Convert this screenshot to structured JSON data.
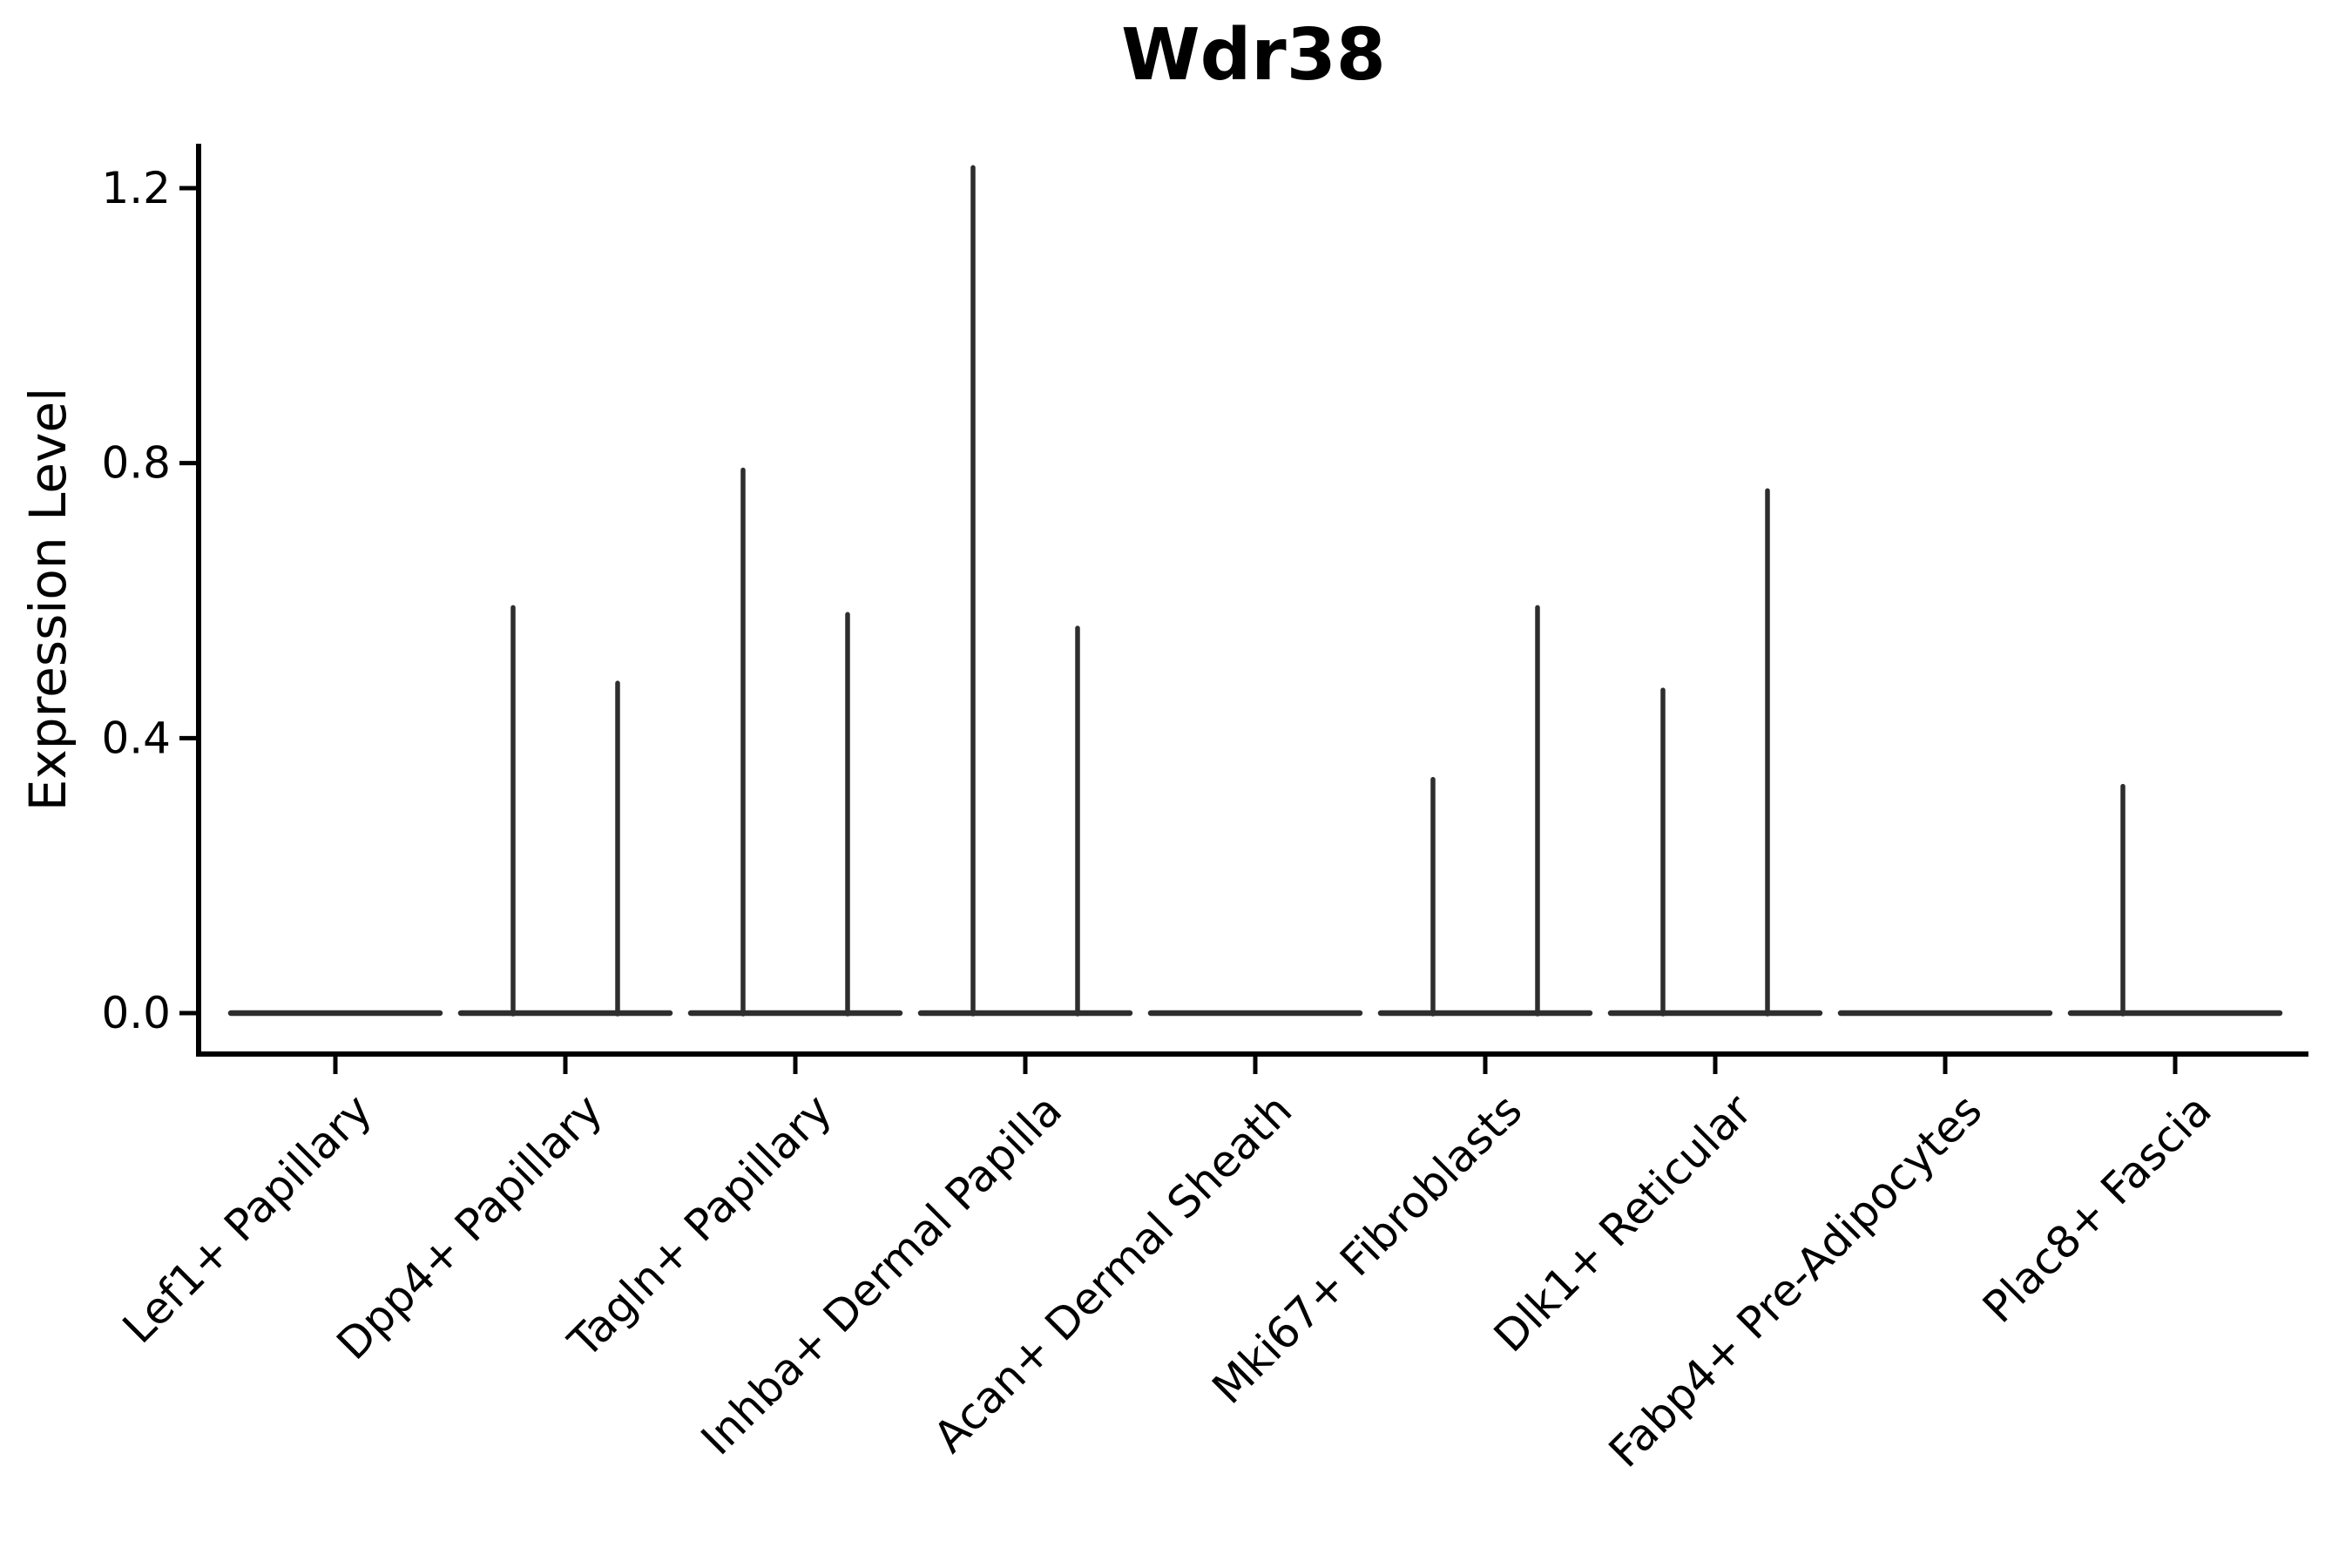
{
  "chart_data": {
    "type": "violin",
    "title": "Wdr38",
    "xlabel": "",
    "ylabel": "Expression Level",
    "background": "#ffffff",
    "violin_color": "#2e2e2e",
    "axis_color": "#000000",
    "grid": false,
    "legend": "none",
    "ylim": [
      -0.06,
      1.26
    ],
    "yticks": [
      0,
      0.4,
      0.8,
      1.2
    ],
    "ytick_labels": [
      "0.0",
      "0.4",
      "0.8",
      "1.2"
    ],
    "categories": [
      "Lef1+ Papillary",
      "Dpp4+ Papillary",
      "Tagln+ Papillary",
      "Inhba+ Dermal Papilla",
      "Acan+ Dermal Sheath",
      "Mki67+ Fibroblasts",
      "Dlk1+ Reticular",
      "Fabp4+ Pre-Adipocytes",
      "Plac8+ Fascia"
    ],
    "violins": [
      {
        "category": "Lef1+ Papillary",
        "baseline": 0.0,
        "spikes": []
      },
      {
        "category": "Dpp4+ Papillary",
        "baseline": 0.0,
        "spikes": [
          {
            "position": "left",
            "peak": 0.59
          },
          {
            "position": "right",
            "peak": 0.48
          }
        ]
      },
      {
        "category": "Tagln+ Papillary",
        "baseline": 0.0,
        "spikes": [
          {
            "position": "left",
            "peak": 0.79
          },
          {
            "position": "right",
            "peak": 0.58
          }
        ]
      },
      {
        "category": "Inhba+ Dermal Papilla",
        "baseline": 0.0,
        "spikes": [
          {
            "position": "left",
            "peak": 1.23
          },
          {
            "position": "right",
            "peak": 0.56
          }
        ]
      },
      {
        "category": "Acan+ Dermal Sheath",
        "baseline": 0.0,
        "spikes": []
      },
      {
        "category": "Mki67+ Fibroblasts",
        "baseline": 0.0,
        "spikes": [
          {
            "position": "left",
            "peak": 0.34
          },
          {
            "position": "right",
            "peak": 0.59
          }
        ]
      },
      {
        "category": "Dlk1+ Reticular",
        "baseline": 0.0,
        "spikes": [
          {
            "position": "left",
            "peak": 0.47
          },
          {
            "position": "right",
            "peak": 0.76
          }
        ]
      },
      {
        "category": "Fabp4+ Pre-Adipocytes",
        "baseline": 0.0,
        "spikes": []
      },
      {
        "category": "Plac8+ Fascia",
        "baseline": 0.0,
        "spikes": [
          {
            "position": "left",
            "peak": 0.33
          }
        ]
      }
    ]
  }
}
